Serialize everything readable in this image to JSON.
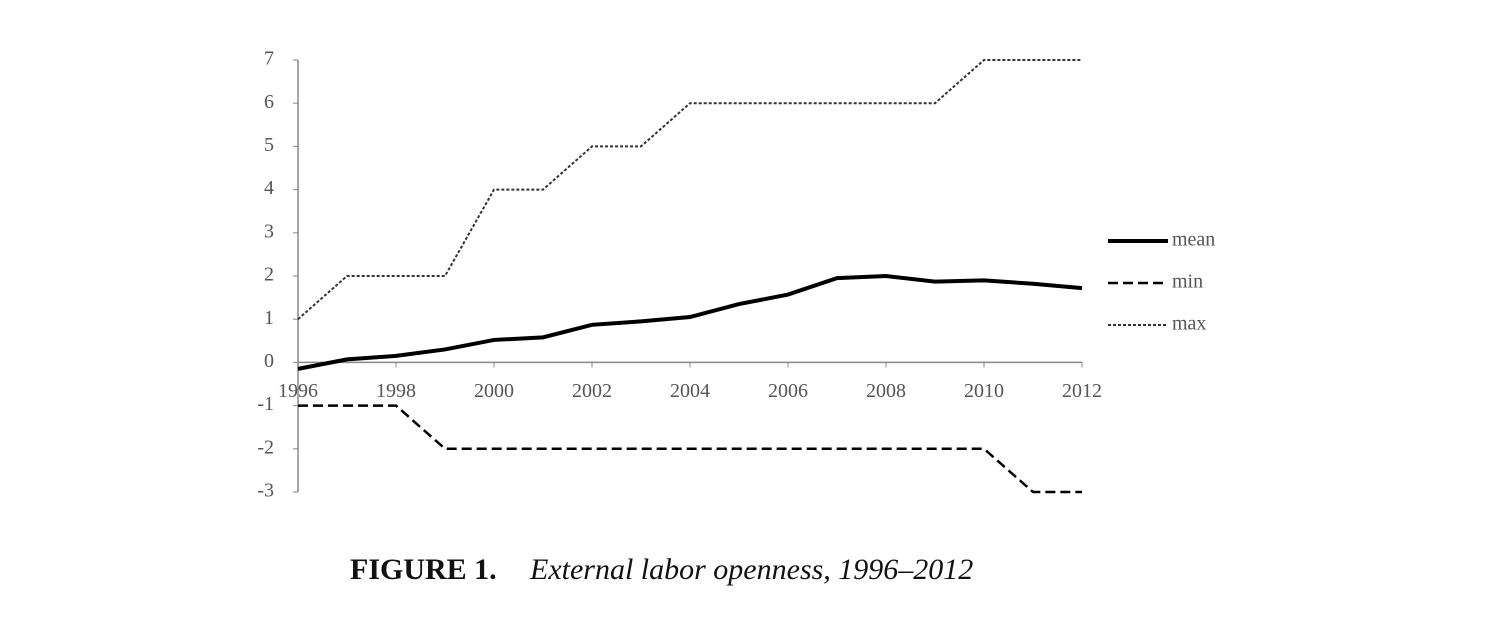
{
  "chart_data": {
    "type": "line",
    "caption_label": "FIGURE 1.",
    "caption": "External labor openness, 1996–2012",
    "x": [
      1996,
      1997,
      1998,
      1999,
      2000,
      2001,
      2002,
      2003,
      2004,
      2005,
      2006,
      2007,
      2008,
      2009,
      2010,
      2011,
      2012
    ],
    "series": [
      {
        "name": "mean",
        "color": "#000000",
        "style": "solid",
        "values": [
          -0.15,
          0.07,
          0.15,
          0.3,
          0.52,
          0.58,
          0.87,
          0.95,
          1.05,
          1.35,
          1.57,
          1.95,
          2.0,
          1.87,
          1.9,
          1.82,
          1.72
        ]
      },
      {
        "name": "min",
        "color": "#000000",
        "style": "dashed",
        "values": [
          -1,
          -1,
          -1,
          -2,
          -2,
          -2,
          -2,
          -2,
          -2,
          -2,
          -2,
          -2,
          -2,
          -2,
          -2,
          -3,
          -3
        ]
      },
      {
        "name": "max",
        "color": "#333333",
        "style": "dotted",
        "values": [
          1,
          2,
          2,
          2,
          4,
          4,
          5,
          5,
          6,
          6,
          6,
          6,
          6,
          6,
          7,
          7,
          7
        ]
      }
    ],
    "xlim": [
      1996,
      2012
    ],
    "xticks": [
      1996,
      1998,
      2000,
      2002,
      2004,
      2006,
      2008,
      2010,
      2012
    ],
    "ylim": [
      -3,
      7
    ],
    "yticks": [
      -3,
      -2,
      -1,
      0,
      1,
      2,
      3,
      4,
      5,
      6,
      7
    ],
    "grid": false,
    "legend": "right"
  }
}
